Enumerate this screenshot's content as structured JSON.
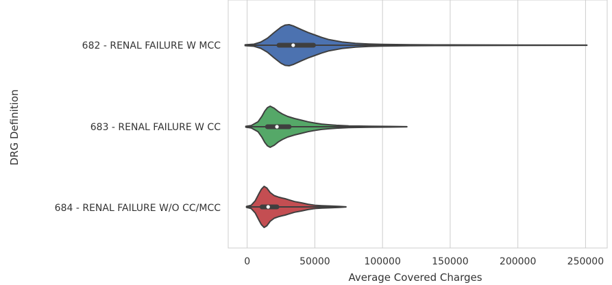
{
  "chart_data": {
    "type": "violin",
    "orientation": "horizontal",
    "xlabel": "Average Covered Charges",
    "ylabel": "DRG Definition",
    "xlim": [
      -14000,
      266000
    ],
    "xticks": [
      0,
      50000,
      100000,
      150000,
      200000,
      250000
    ],
    "xtick_labels": [
      "0",
      "50000",
      "100000",
      "150000",
      "200000",
      "250000"
    ],
    "grid": "vertical",
    "categories": [
      "682 - RENAL FAILURE W MCC",
      "683 - RENAL FAILURE W CC",
      "684 - RENAL FAILURE W/O CC/MCC"
    ],
    "series": [
      {
        "category": "682 - RENAL FAILURE W MCC",
        "color": "#4c72b0",
        "min": -1500,
        "max": 251000,
        "q1": 23500,
        "median": 34000,
        "q3": 49000,
        "whisker_low": -1500,
        "whisker_high": 251000,
        "density": [
          [
            -1500,
            0.02
          ],
          [
            5000,
            0.05
          ],
          [
            10000,
            0.15
          ],
          [
            15000,
            0.34
          ],
          [
            20000,
            0.62
          ],
          [
            25000,
            0.88
          ],
          [
            28000,
            0.98
          ],
          [
            31000,
            1.0
          ],
          [
            34000,
            0.94
          ],
          [
            40000,
            0.76
          ],
          [
            45000,
            0.62
          ],
          [
            50000,
            0.5
          ],
          [
            55000,
            0.38
          ],
          [
            60000,
            0.28
          ],
          [
            70000,
            0.16
          ],
          [
            80000,
            0.09
          ],
          [
            90000,
            0.06
          ],
          [
            100000,
            0.04
          ],
          [
            120000,
            0.025
          ],
          [
            150000,
            0.015
          ],
          [
            200000,
            0.01
          ],
          [
            251000,
            0.005
          ]
        ]
      },
      {
        "category": "683 - RENAL FAILURE W CC",
        "color": "#55a868",
        "min": -1000,
        "max": 118000,
        "q1": 15000,
        "median": 22000,
        "q3": 31000,
        "whisker_low": -1000,
        "whisker_high": 118000,
        "density": [
          [
            -1000,
            0.02
          ],
          [
            3000,
            0.06
          ],
          [
            8000,
            0.24
          ],
          [
            11000,
            0.52
          ],
          [
            13000,
            0.76
          ],
          [
            15000,
            0.93
          ],
          [
            17000,
            1.0
          ],
          [
            20000,
            0.9
          ],
          [
            23000,
            0.74
          ],
          [
            26000,
            0.62
          ],
          [
            30000,
            0.5
          ],
          [
            35000,
            0.4
          ],
          [
            40000,
            0.32
          ],
          [
            45000,
            0.24
          ],
          [
            50000,
            0.18
          ],
          [
            55000,
            0.13
          ],
          [
            60000,
            0.1
          ],
          [
            66000,
            0.07
          ],
          [
            75000,
            0.04
          ],
          [
            90000,
            0.025
          ],
          [
            105000,
            0.015
          ],
          [
            118000,
            0.005
          ]
        ]
      },
      {
        "category": "684 - RENAL FAILURE W/O CC/MCC",
        "color": "#c44e52",
        "min": -500,
        "max": 73000,
        "q1": 11000,
        "median": 15500,
        "q3": 22000,
        "whisker_low": -500,
        "whisker_high": 73000,
        "density": [
          [
            -500,
            0.02
          ],
          [
            3000,
            0.08
          ],
          [
            6000,
            0.3
          ],
          [
            8500,
            0.62
          ],
          [
            10500,
            0.86
          ],
          [
            12500,
            1.0
          ],
          [
            14500,
            0.92
          ],
          [
            17000,
            0.7
          ],
          [
            20000,
            0.55
          ],
          [
            23000,
            0.48
          ],
          [
            26000,
            0.43
          ],
          [
            28000,
            0.4
          ],
          [
            31000,
            0.34
          ],
          [
            35000,
            0.26
          ],
          [
            40000,
            0.2
          ],
          [
            45000,
            0.13
          ],
          [
            50000,
            0.08
          ],
          [
            55000,
            0.06
          ],
          [
            62000,
            0.04
          ],
          [
            68000,
            0.025
          ],
          [
            73000,
            0.005
          ]
        ]
      }
    ]
  }
}
